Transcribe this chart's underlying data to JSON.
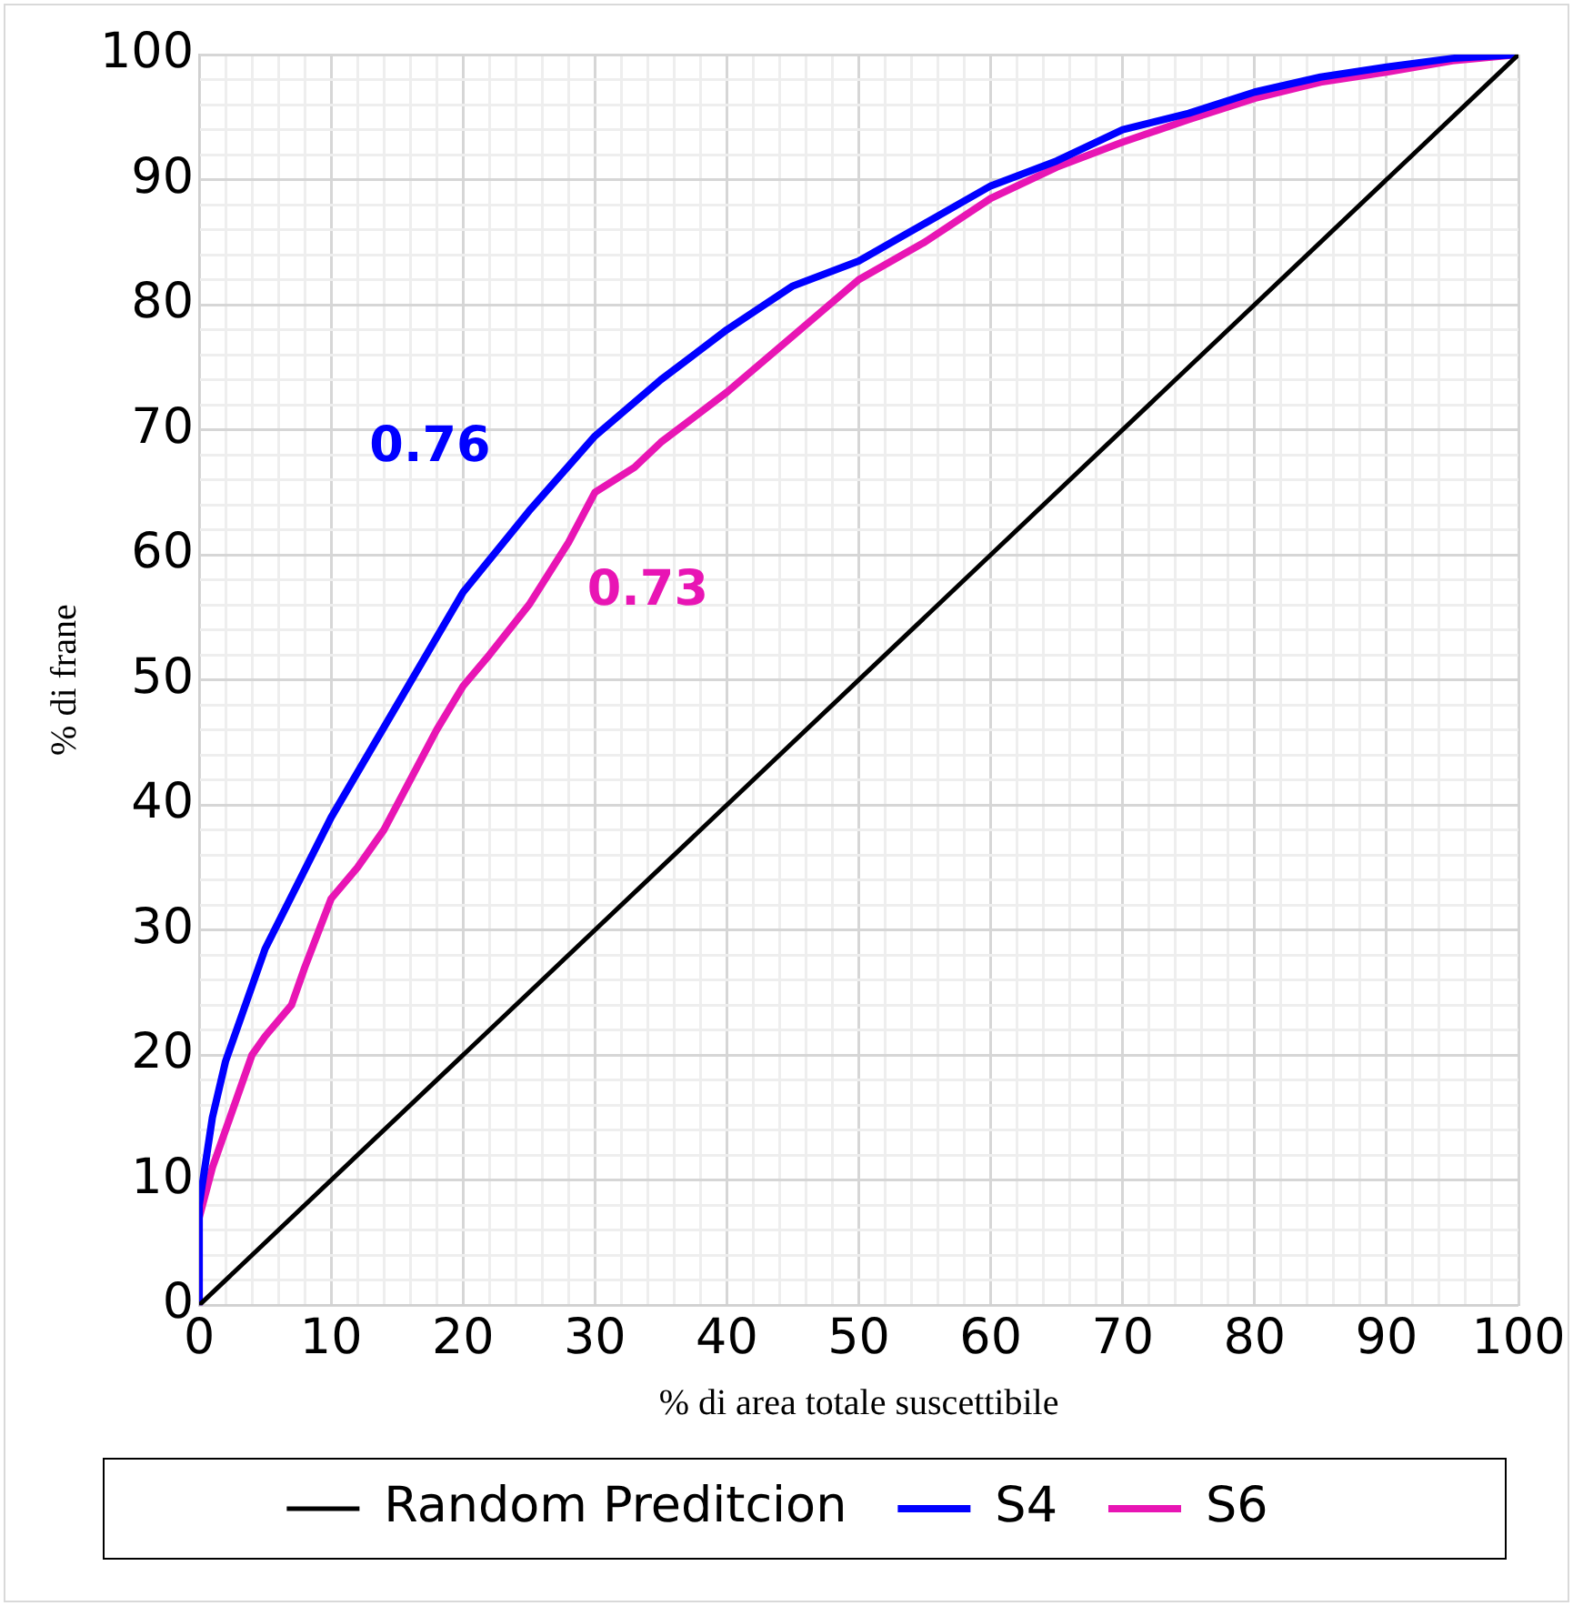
{
  "chart_data": {
    "type": "line",
    "xlabel": "% di area totale suscettibile",
    "ylabel": "% di frane",
    "xlim": [
      0,
      100
    ],
    "ylim": [
      0,
      100
    ],
    "xticks": [
      0,
      {
        "value": 2,
        "label": null
      },
      {
        "value": 4,
        "label": null
      },
      {
        "value": 6,
        "label": null
      },
      {
        "value": 8,
        "label": null
      },
      10,
      {
        "value": 12,
        "label": null
      },
      {
        "value": 14,
        "label": null
      },
      {
        "value": 16,
        "label": null
      },
      {
        "value": 18,
        "label": null
      },
      20,
      {
        "value": 22,
        "label": null
      },
      {
        "value": 24,
        "label": null
      },
      {
        "value": 26,
        "label": null
      },
      {
        "value": 28,
        "label": null
      },
      30,
      {
        "value": 32,
        "label": null
      },
      {
        "value": 34,
        "label": null
      },
      {
        "value": 36,
        "label": null
      },
      {
        "value": 38,
        "label": null
      },
      40,
      {
        "value": 42,
        "label": null
      },
      {
        "value": 44,
        "label": null
      },
      {
        "value": 46,
        "label": null
      },
      {
        "value": 48,
        "label": null
      },
      50,
      {
        "value": 52,
        "label": null
      },
      {
        "value": 54,
        "label": null
      },
      {
        "value": 56,
        "label": null
      },
      {
        "value": 58,
        "label": null
      },
      60,
      {
        "value": 62,
        "label": null
      },
      {
        "value": 64,
        "label": null
      },
      {
        "value": 66,
        "label": null
      },
      {
        "value": 68,
        "label": null
      },
      70,
      {
        "value": 72,
        "label": null
      },
      {
        "value": 74,
        "label": null
      },
      {
        "value": 76,
        "label": null
      },
      {
        "value": 78,
        "label": null
      },
      80,
      {
        "value": 82,
        "label": null
      },
      {
        "value": 84,
        "label": null
      },
      {
        "value": 86,
        "label": null
      },
      {
        "value": 88,
        "label": null
      },
      90,
      {
        "value": 92,
        "label": null
      },
      {
        "value": 94,
        "label": null
      },
      {
        "value": 96,
        "label": null
      },
      {
        "value": 98,
        "label": null
      },
      100
    ],
    "yticks": [
      0,
      {
        "value": 2,
        "label": null
      },
      {
        "value": 4,
        "label": null
      },
      {
        "value": 6,
        "label": null
      },
      {
        "value": 8,
        "label": null
      },
      10,
      {
        "value": 12,
        "label": null
      },
      {
        "value": 14,
        "label": null
      },
      {
        "value": 16,
        "label": null
      },
      {
        "value": 18,
        "label": null
      },
      20,
      {
        "value": 22,
        "label": null
      },
      {
        "value": 24,
        "label": null
      },
      {
        "value": 26,
        "label": null
      },
      {
        "value": 28,
        "label": null
      },
      30,
      {
        "value": 32,
        "label": null
      },
      {
        "value": 34,
        "label": null
      },
      {
        "value": 36,
        "label": null
      },
      {
        "value": 38,
        "label": null
      },
      40,
      {
        "value": 42,
        "label": null
      },
      {
        "value": 44,
        "label": null
      },
      {
        "value": 46,
        "label": null
      },
      {
        "value": 48,
        "label": null
      },
      50,
      {
        "value": 52,
        "label": null
      },
      {
        "value": 54,
        "label": null
      },
      {
        "value": 56,
        "label": null
      },
      {
        "value": 58,
        "label": null
      },
      60,
      {
        "value": 62,
        "label": null
      },
      {
        "value": 64,
        "label": null
      },
      {
        "value": 66,
        "label": null
      },
      {
        "value": 68,
        "label": null
      },
      70,
      {
        "value": 72,
        "label": null
      },
      {
        "value": 74,
        "label": null
      },
      {
        "value": 76,
        "label": null
      },
      {
        "value": 78,
        "label": null
      },
      80,
      {
        "value": 82,
        "label": null
      },
      {
        "value": 84,
        "label": null
      },
      {
        "value": 86,
        "label": null
      },
      {
        "value": 88,
        "label": null
      },
      90,
      {
        "value": 92,
        "label": null
      },
      {
        "value": 94,
        "label": null
      },
      {
        "value": 96,
        "label": null
      },
      {
        "value": 98,
        "label": null
      },
      100
    ],
    "grid": true,
    "legend": "bottom",
    "marker": "none",
    "line_style": "solid",
    "series": [
      {
        "name": "Random Preditcion",
        "color": "#000000",
        "x": [
          0,
          100
        ],
        "values": [
          0,
          100
        ]
      },
      {
        "name": "S4",
        "color": "#0000ff",
        "x": [
          0,
          0,
          1,
          2,
          5,
          10,
          15,
          20,
          25,
          30,
          35,
          40,
          45,
          50,
          55,
          60,
          65,
          70,
          75,
          80,
          85,
          90,
          95,
          100
        ],
        "values": [
          0,
          8,
          15,
          19.5,
          28.5,
          39,
          48,
          57,
          63.5,
          69.5,
          74,
          78,
          81.5,
          83.5,
          86.5,
          89.5,
          91.5,
          94,
          95.3,
          97,
          98.2,
          99,
          99.7,
          100
        ]
      },
      {
        "name": "S6",
        "color": "#e815b4",
        "x": [
          0,
          0,
          1,
          2,
          4,
          5,
          7,
          8,
          10,
          12,
          14,
          16,
          18,
          20,
          22,
          25,
          28,
          30,
          33,
          35,
          40,
          45,
          50,
          55,
          60,
          65,
          70,
          75,
          80,
          85,
          90,
          95,
          100
        ],
        "values": [
          0,
          7,
          11,
          14,
          20,
          21.5,
          24,
          27,
          32.5,
          35,
          38,
          42,
          46,
          49.5,
          52,
          56,
          61,
          65,
          67,
          69,
          73,
          77.5,
          82,
          85,
          88.5,
          91,
          93,
          94.8,
          96.5,
          97.8,
          98.6,
          99.5,
          100
        ]
      }
    ],
    "annotations": [
      "0.76",
      "0.73"
    ]
  }
}
